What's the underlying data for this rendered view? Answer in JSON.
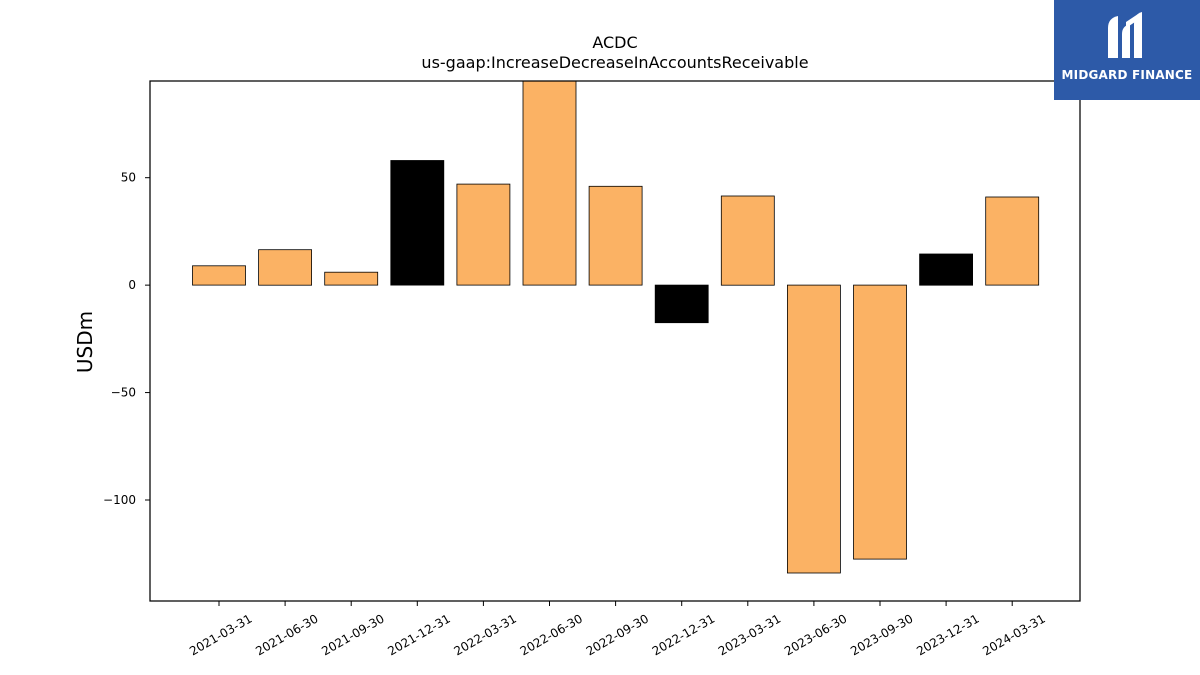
{
  "chart_data": {
    "type": "bar",
    "title": "ACDC",
    "subtitle": "us-gaap:IncreaseDecreaseInAccountsReceivable",
    "xlabel": "",
    "ylabel": "USDm",
    "ylim": [
      -147,
      95
    ],
    "yticks": [
      50,
      0,
      -50,
      -100
    ],
    "ytick_labels": [
      "50",
      "0",
      "−50",
      "−100"
    ],
    "categories": [
      "2021-03-31",
      "2021-06-30",
      "2021-09-30",
      "2021-12-31",
      "2022-03-31",
      "2022-06-30",
      "2022-09-30",
      "2022-12-31",
      "2023-03-31",
      "2023-06-30",
      "2023-09-30",
      "2023-12-31",
      "2024-03-31"
    ],
    "values": [
      9,
      16.5,
      6,
      58,
      47,
      96,
      46,
      -17.5,
      41.5,
      -134,
      -127.5,
      14.5,
      41
    ],
    "bar_colors": [
      "#fbb264",
      "#fbb264",
      "#fbb264",
      "#000000",
      "#fbb264",
      "#fbb264",
      "#fbb264",
      "#000000",
      "#fbb264",
      "#fbb264",
      "#fbb264",
      "#000000",
      "#fbb264"
    ],
    "grid": false
  },
  "logo": {
    "text": "MIDGARD FINANCE",
    "background": "#2d5aa8",
    "icon": "midgard-logo-icon"
  }
}
